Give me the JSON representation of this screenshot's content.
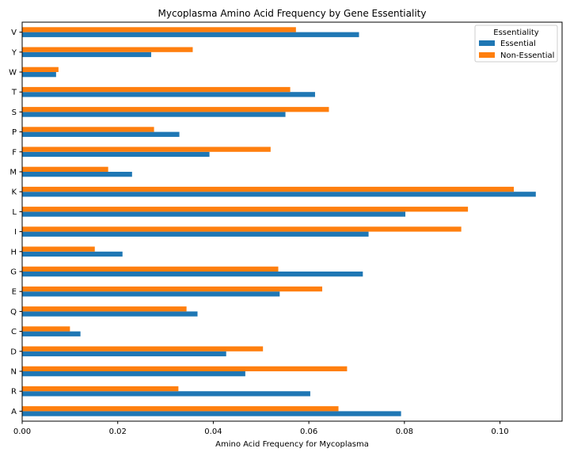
{
  "chart_data": {
    "type": "bar",
    "orientation": "horizontal",
    "title": "Mycoplasma Amino Acid Frequency by Gene Essentiality",
    "xlabel": "Amino Acid Frequency for Mycoplasma",
    "ylabel": "",
    "xlim": [
      0,
      0.113
    ],
    "xticks": [
      "0.00",
      "0.02",
      "0.04",
      "0.06",
      "0.08",
      "0.10"
    ],
    "xtick_values": [
      0,
      0.02,
      0.04,
      0.06,
      0.08,
      0.1
    ],
    "categories": [
      "A",
      "R",
      "N",
      "D",
      "C",
      "Q",
      "E",
      "G",
      "H",
      "I",
      "L",
      "K",
      "M",
      "F",
      "P",
      "S",
      "T",
      "W",
      "Y",
      "V"
    ],
    "series": [
      {
        "name": "Essential",
        "color": "#1f77b4",
        "values": [
          0.0793,
          0.0603,
          0.0467,
          0.0427,
          0.0122,
          0.0367,
          0.0539,
          0.0713,
          0.021,
          0.0725,
          0.0802,
          0.1075,
          0.023,
          0.0392,
          0.0329,
          0.0551,
          0.0613,
          0.0071,
          0.027,
          0.0705
        ]
      },
      {
        "name": "Non-Essential",
        "color": "#ff7f0e",
        "values": [
          0.0662,
          0.0327,
          0.068,
          0.0504,
          0.01,
          0.0344,
          0.0628,
          0.0536,
          0.0152,
          0.0919,
          0.0933,
          0.1029,
          0.018,
          0.052,
          0.0276,
          0.0642,
          0.0561,
          0.0076,
          0.0357,
          0.0573
        ]
      }
    ],
    "legend": {
      "title": "Essentiality",
      "placement": "top-right"
    },
    "grid": false
  }
}
